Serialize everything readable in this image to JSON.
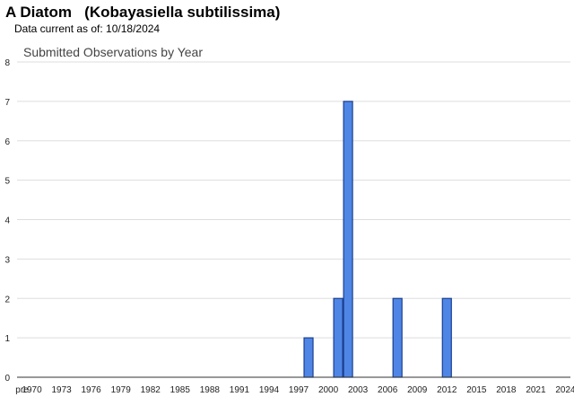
{
  "header": {
    "title": "A Diatom   (Kobayasiella subtilissima)",
    "data_current": "Data current as of: 10/18/2024"
  },
  "colors": {
    "bar_fill": "#4f86e6",
    "bar_stroke": "#1a3f8f",
    "grid": "#dddddd",
    "axis": "#333333"
  },
  "chart_data": {
    "type": "bar",
    "title": "Submitted Observations by Year",
    "xlabel": "",
    "ylabel": "",
    "ylim": [
      0,
      8
    ],
    "yticks": [
      0,
      1,
      2,
      3,
      4,
      5,
      6,
      7,
      8
    ],
    "grid": true,
    "legend": "none",
    "categories": [
      "pre",
      "1970",
      "1971",
      "1972",
      "1973",
      "1974",
      "1975",
      "1976",
      "1977",
      "1978",
      "1979",
      "1980",
      "1981",
      "1982",
      "1983",
      "1984",
      "1985",
      "1986",
      "1987",
      "1988",
      "1989",
      "1990",
      "1991",
      "1992",
      "1993",
      "1994",
      "1995",
      "1996",
      "1997",
      "1998",
      "1999",
      "2000",
      "2001",
      "2002",
      "2003",
      "2004",
      "2005",
      "2006",
      "2007",
      "2008",
      "2009",
      "2010",
      "2011",
      "2012",
      "2013",
      "2014",
      "2015",
      "2016",
      "2017",
      "2018",
      "2019",
      "2020",
      "2021",
      "2022",
      "2023",
      "2024"
    ],
    "tick_labels": [
      "pre",
      "1970",
      "1973",
      "1976",
      "1979",
      "1982",
      "1985",
      "1988",
      "1991",
      "1994",
      "1997",
      "2000",
      "2003",
      "2006",
      "2009",
      "2012",
      "2015",
      "2018",
      "2021",
      "2024"
    ],
    "values": [
      0,
      0,
      0,
      0,
      0,
      0,
      0,
      0,
      0,
      0,
      0,
      0,
      0,
      0,
      0,
      0,
      0,
      0,
      0,
      0,
      0,
      0,
      0,
      0,
      0,
      0,
      0,
      0,
      0,
      1,
      0,
      0,
      2,
      7,
      0,
      0,
      0,
      0,
      2,
      0,
      0,
      0,
      0,
      2,
      0,
      0,
      0,
      0,
      0,
      0,
      0,
      0,
      0,
      0,
      0,
      0
    ]
  }
}
